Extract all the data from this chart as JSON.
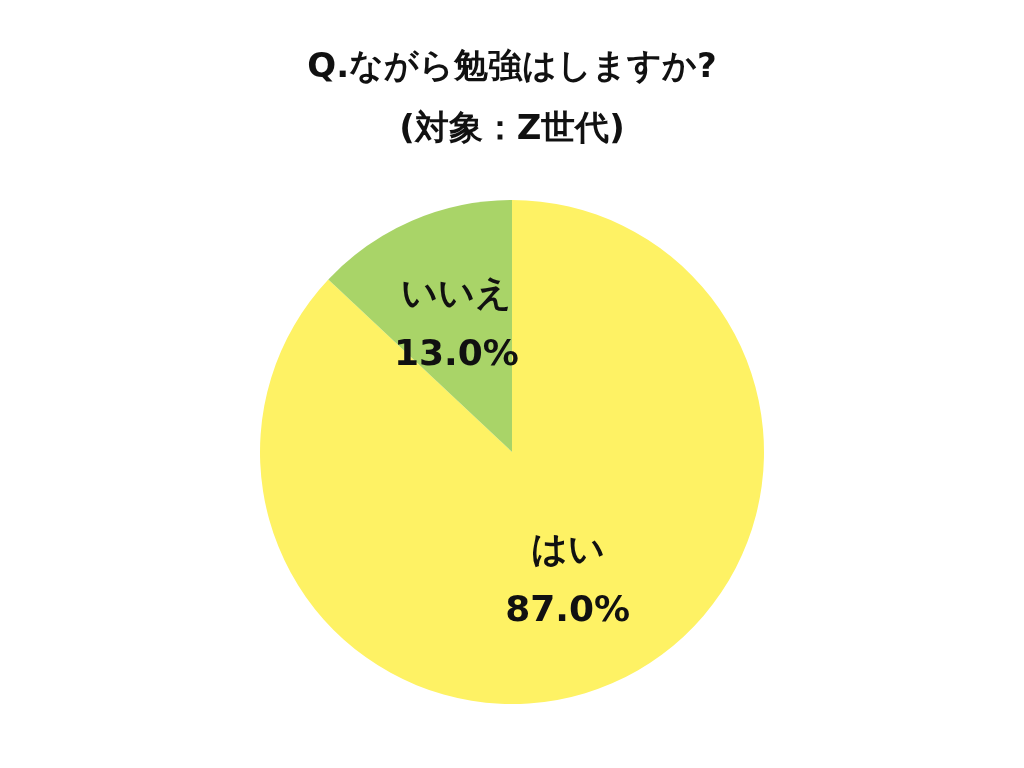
{
  "chart_data": {
    "type": "pie",
    "title": [
      "Q.ながら勉強はしますか?",
      "(対象：Z世代)"
    ],
    "categories": [
      "はい",
      "いいえ"
    ],
    "values": [
      87.0,
      13.0
    ],
    "colors": [
      "#fef264",
      "#a9d468"
    ],
    "value_labels": [
      "87.0%",
      "13.0%"
    ],
    "legend": false
  }
}
